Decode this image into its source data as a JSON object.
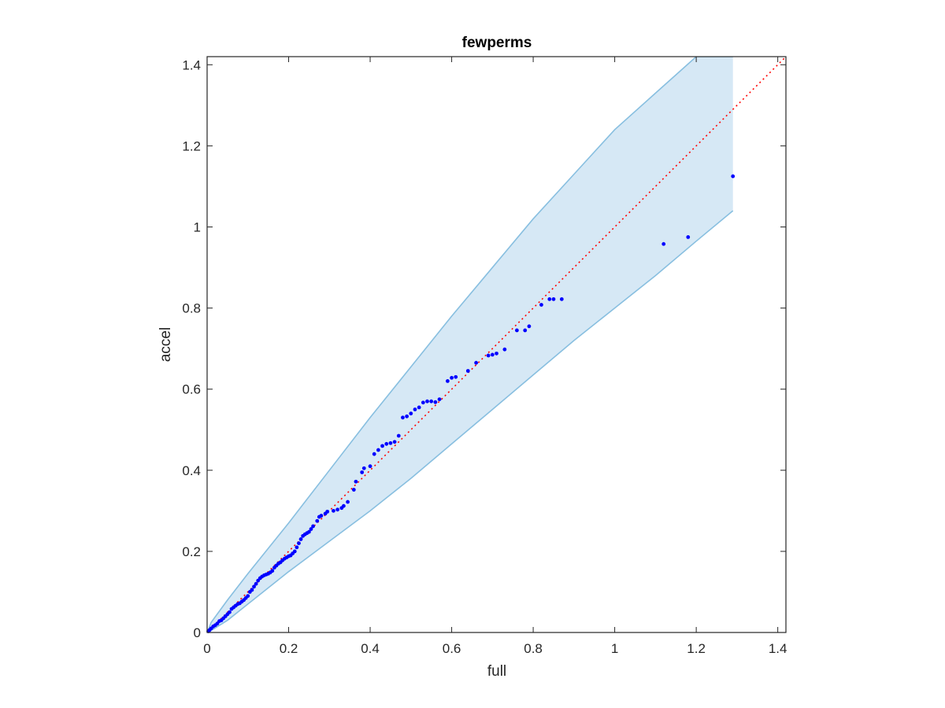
{
  "chart_data": {
    "type": "scatter",
    "title": "fewperms",
    "xlabel": "full",
    "ylabel": "accel",
    "xlim": [
      0,
      1.42
    ],
    "ylim": [
      0,
      1.42
    ],
    "xticks": [
      0,
      0.2,
      0.4,
      0.6,
      0.8,
      1,
      1.2,
      1.4
    ],
    "yticks": [
      0,
      0.2,
      0.4,
      0.6,
      0.8,
      1,
      1.2,
      1.4
    ],
    "xtick_labels": [
      "0",
      "0.2",
      "0.4",
      "0.6",
      "0.8",
      "1",
      "1.2",
      "1.4"
    ],
    "ytick_labels": [
      "0",
      "0.2",
      "0.4",
      "0.6",
      "0.8",
      "1",
      "1.2",
      "1.4"
    ],
    "grid": false,
    "colors": {
      "points": "#0000ff",
      "band_fill": "#d6e8f5",
      "band_edge": "#88bfe0",
      "reference_line": "#ff0000",
      "axes": "#262626"
    },
    "reference_line": {
      "style": "dotted",
      "from": [
        0,
        0
      ],
      "to": [
        1.42,
        1.42
      ]
    },
    "confidence_band": {
      "x": [
        0,
        0.01,
        0.05,
        0.1,
        0.2,
        0.3,
        0.4,
        0.5,
        0.6,
        0.7,
        0.8,
        0.9,
        1.0,
        1.1,
        1.2,
        1.29
      ],
      "upper": [
        0,
        0.025,
        0.08,
        0.145,
        0.27,
        0.4,
        0.53,
        0.655,
        0.78,
        0.9,
        1.02,
        1.13,
        1.24,
        1.33,
        1.42,
        1.42
      ],
      "lower": [
        0,
        0.005,
        0.03,
        0.07,
        0.15,
        0.225,
        0.3,
        0.38,
        0.465,
        0.55,
        0.635,
        0.72,
        0.8,
        0.88,
        0.965,
        1.04
      ]
    },
    "series": [
      {
        "x": [
          0.003,
          0.006,
          0.01,
          0.015,
          0.02,
          0.025,
          0.03,
          0.035,
          0.04,
          0.045,
          0.05,
          0.055,
          0.06,
          0.065,
          0.07,
          0.075,
          0.08,
          0.085,
          0.09,
          0.095,
          0.1,
          0.105,
          0.11,
          0.115,
          0.12,
          0.125,
          0.13,
          0.135,
          0.14,
          0.145,
          0.15,
          0.155,
          0.16,
          0.165,
          0.17,
          0.175,
          0.18,
          0.185,
          0.19,
          0.195,
          0.2,
          0.205,
          0.21,
          0.215,
          0.22,
          0.225,
          0.23,
          0.235,
          0.24,
          0.245,
          0.25,
          0.255,
          0.26,
          0.27,
          0.275,
          0.28,
          0.29,
          0.295,
          0.31,
          0.32,
          0.33,
          0.335,
          0.345,
          0.36,
          0.365,
          0.38,
          0.385,
          0.4,
          0.41,
          0.42,
          0.43,
          0.44,
          0.45,
          0.46,
          0.47,
          0.48,
          0.49,
          0.5,
          0.51,
          0.52,
          0.53,
          0.54,
          0.55,
          0.56,
          0.57,
          0.59,
          0.6,
          0.61,
          0.64,
          0.66,
          0.69,
          0.7,
          0.71,
          0.73,
          0.76,
          0.78,
          0.79,
          0.82,
          0.84,
          0.85,
          0.87,
          1.12,
          1.18,
          1.29
        ],
        "y": [
          0.003,
          0.006,
          0.01,
          0.015,
          0.018,
          0.022,
          0.028,
          0.03,
          0.035,
          0.04,
          0.045,
          0.05,
          0.058,
          0.062,
          0.066,
          0.07,
          0.072,
          0.076,
          0.08,
          0.085,
          0.09,
          0.1,
          0.105,
          0.113,
          0.12,
          0.128,
          0.134,
          0.138,
          0.141,
          0.143,
          0.145,
          0.148,
          0.152,
          0.16,
          0.165,
          0.17,
          0.173,
          0.178,
          0.182,
          0.185,
          0.188,
          0.19,
          0.195,
          0.2,
          0.21,
          0.22,
          0.23,
          0.238,
          0.242,
          0.245,
          0.248,
          0.255,
          0.262,
          0.275,
          0.285,
          0.288,
          0.293,
          0.298,
          0.3,
          0.303,
          0.307,
          0.312,
          0.322,
          0.352,
          0.372,
          0.395,
          0.405,
          0.41,
          0.44,
          0.45,
          0.46,
          0.465,
          0.467,
          0.47,
          0.485,
          0.53,
          0.533,
          0.54,
          0.55,
          0.555,
          0.567,
          0.57,
          0.57,
          0.568,
          0.575,
          0.62,
          0.628,
          0.63,
          0.645,
          0.665,
          0.683,
          0.685,
          0.688,
          0.698,
          0.745,
          0.745,
          0.755,
          0.808,
          0.822,
          0.822,
          0.822,
          0.958,
          0.975,
          1.125
        ]
      }
    ]
  }
}
